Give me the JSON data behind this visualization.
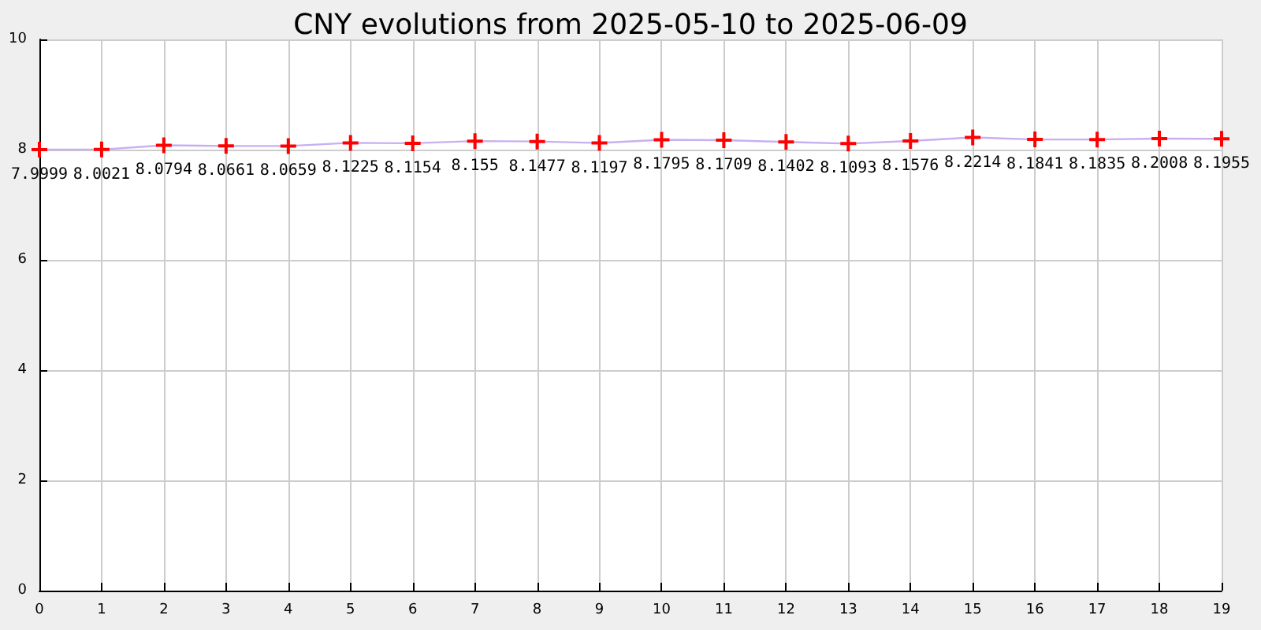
{
  "chart_data": {
    "type": "line",
    "title": "CNY evolutions from 2025-05-10 to 2025-06-09",
    "x": [
      0,
      1,
      2,
      3,
      4,
      5,
      6,
      7,
      8,
      9,
      10,
      11,
      12,
      13,
      14,
      15,
      16,
      17,
      18,
      19
    ],
    "series": [
      {
        "color": "#c8b0f0",
        "colors": [
          "#ff0000",
          "#ff0000",
          "#ff0000",
          "#ff0000",
          "#ff0000",
          "#ff0000",
          "#ff0000",
          "#ff0000",
          "#ff0000",
          "#ff0000",
          "#ff0000",
          "#ff0000",
          "#ff0000",
          "#ff0000",
          "#ff0000",
          "#ff0000",
          "#ff0000",
          "#ff0000",
          "#ff0000",
          "#ff0000"
        ],
        "values": [
          7.9999,
          8.0021,
          8.0794,
          8.0661,
          8.0659,
          8.1225,
          8.1154,
          8.155,
          8.1477,
          8.1197,
          8.1795,
          8.1709,
          8.1402,
          8.1093,
          8.1576,
          8.2214,
          8.1841,
          8.1835,
          8.2008,
          8.1955
        ]
      }
    ],
    "xlim": [
      0,
      19
    ],
    "xticks": [
      0,
      1,
      2,
      3,
      4,
      5,
      6,
      7,
      8,
      9,
      10,
      11,
      12,
      13,
      14,
      15,
      16,
      17,
      18,
      19
    ],
    "ylim": [
      0,
      10
    ],
    "yticks": [
      0,
      2,
      4,
      6,
      8,
      10
    ],
    "grid": true,
    "marker": "cross",
    "line_style": "solid",
    "data_labels": true
  }
}
